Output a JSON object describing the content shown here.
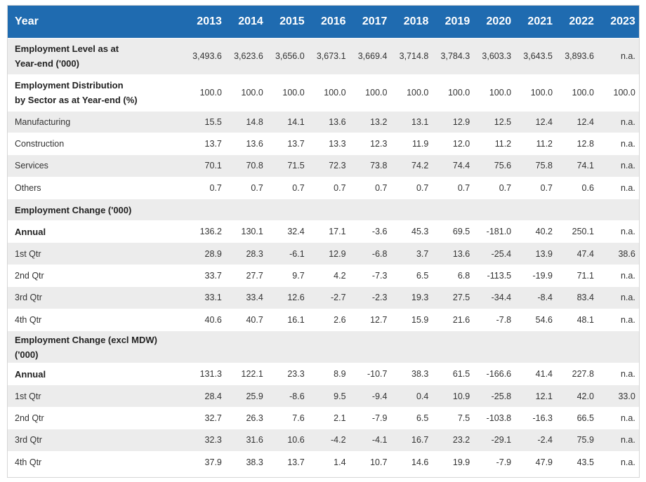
{
  "table": {
    "header": {
      "label": "Year",
      "years": [
        "2013",
        "2014",
        "2015",
        "2016",
        "2017",
        "2018",
        "2019",
        "2020",
        "2021",
        "2022",
        "2023"
      ]
    },
    "rows": [
      {
        "label_lines": [
          "Employment Level as at",
          "Year-end ('000)"
        ],
        "bold": true,
        "cls": "r1 shade",
        "values": [
          "3,493.6",
          "3,623.6",
          "3,656.0",
          "3,673.1",
          "3,669.4",
          "3,714.8",
          "3,784.3",
          "3,603.3",
          "3,643.5",
          "3,893.6",
          "n.a."
        ]
      },
      {
        "label_lines": [
          "Employment Distribution",
          "by Sector as at Year-end (%)"
        ],
        "bold": true,
        "cls": "r2 plain",
        "values": [
          "100.0",
          "100.0",
          "100.0",
          "100.0",
          "100.0",
          "100.0",
          "100.0",
          "100.0",
          "100.0",
          "100.0",
          "100.0"
        ]
      },
      {
        "label_lines": [
          "Manufacturing"
        ],
        "bold": false,
        "cls": "rs shade",
        "values": [
          "15.5",
          "14.8",
          "14.1",
          "13.6",
          "13.2",
          "13.1",
          "12.9",
          "12.5",
          "12.4",
          "12.4",
          "n.a."
        ]
      },
      {
        "label_lines": [
          "Construction"
        ],
        "bold": false,
        "cls": "rs plain",
        "values": [
          "13.7",
          "13.6",
          "13.7",
          "13.3",
          "12.3",
          "11.9",
          "12.0",
          "11.2",
          "11.2",
          "12.8",
          "n.a."
        ]
      },
      {
        "label_lines": [
          "Services"
        ],
        "bold": false,
        "cls": "rs shade",
        "values": [
          "70.1",
          "70.8",
          "71.5",
          "72.3",
          "73.8",
          "74.2",
          "74.4",
          "75.6",
          "75.8",
          "74.1",
          "n.a."
        ]
      },
      {
        "label_lines": [
          "Others"
        ],
        "bold": false,
        "cls": "rs plain",
        "values": [
          "0.7",
          "0.7",
          "0.7",
          "0.7",
          "0.7",
          "0.7",
          "0.7",
          "0.7",
          "0.7",
          "0.6",
          "n.a."
        ]
      },
      {
        "label_lines": [
          "Employment Change ('000)"
        ],
        "bold": true,
        "cls": "rh shade",
        "values": []
      },
      {
        "label_lines": [
          "Annual"
        ],
        "bold": true,
        "cls": "rs plain",
        "values": [
          "136.2",
          "130.1",
          "32.4",
          "17.1",
          "-3.6",
          "45.3",
          "69.5",
          "-181.0",
          "40.2",
          "250.1",
          "n.a."
        ]
      },
      {
        "label_lines": [
          "1st Qtr"
        ],
        "bold": false,
        "cls": "rs shade",
        "values": [
          "28.9",
          "28.3",
          "-6.1",
          "12.9",
          "-6.8",
          "3.7",
          "13.6",
          "-25.4",
          "13.9",
          "47.4",
          "38.6"
        ]
      },
      {
        "label_lines": [
          "2nd Qtr"
        ],
        "bold": false,
        "cls": "rs plain",
        "values": [
          "33.7",
          "27.7",
          "9.7",
          "4.2",
          "-7.3",
          "6.5",
          "6.8",
          "-113.5",
          "-19.9",
          "71.1",
          "n.a."
        ]
      },
      {
        "label_lines": [
          "3rd Qtr"
        ],
        "bold": false,
        "cls": "rs shade",
        "values": [
          "33.1",
          "33.4",
          "12.6",
          "-2.7",
          "-2.3",
          "19.3",
          "27.5",
          "-34.4",
          "-8.4",
          "83.4",
          "n.a."
        ]
      },
      {
        "label_lines": [
          "4th Qtr"
        ],
        "bold": false,
        "cls": "rs plain",
        "values": [
          "40.6",
          "40.7",
          "16.1",
          "2.6",
          "12.7",
          "15.9",
          "21.6",
          "-7.8",
          "54.6",
          "48.1",
          "n.a."
        ]
      },
      {
        "label_lines": [
          "Employment Change (excl MDW)",
          "('000)"
        ],
        "bold": true,
        "cls": "rd shade",
        "values": []
      },
      {
        "label_lines": [
          "Annual"
        ],
        "bold": true,
        "cls": "rs plain",
        "values": [
          "131.3",
          "122.1",
          "23.3",
          "8.9",
          "-10.7",
          "38.3",
          "61.5",
          "-166.6",
          "41.4",
          "227.8",
          "n.a."
        ]
      },
      {
        "label_lines": [
          "1st Qtr"
        ],
        "bold": false,
        "cls": "rs shade",
        "values": [
          "28.4",
          "25.9",
          "-8.6",
          "9.5",
          "-9.4",
          "0.4",
          "10.9",
          "-25.8",
          "12.1",
          "42.0",
          "33.0"
        ]
      },
      {
        "label_lines": [
          "2nd Qtr"
        ],
        "bold": false,
        "cls": "rs plain",
        "values": [
          "32.7",
          "26.3",
          "7.6",
          "2.1",
          "-7.9",
          "6.5",
          "7.5",
          "-103.8",
          "-16.3",
          "66.5",
          "n.a."
        ]
      },
      {
        "label_lines": [
          "3rd Qtr"
        ],
        "bold": false,
        "cls": "rs shade",
        "values": [
          "32.3",
          "31.6",
          "10.6",
          "-4.2",
          "-4.1",
          "16.7",
          "23.2",
          "-29.1",
          "-2.4",
          "75.9",
          "n.a."
        ]
      },
      {
        "label_lines": [
          "4th Qtr"
        ],
        "bold": false,
        "cls": "rs plain",
        "values": [
          "37.9",
          "38.3",
          "13.7",
          "1.4",
          "10.7",
          "14.6",
          "19.9",
          "-7.9",
          "47.9",
          "43.5",
          "n.a."
        ]
      }
    ]
  }
}
